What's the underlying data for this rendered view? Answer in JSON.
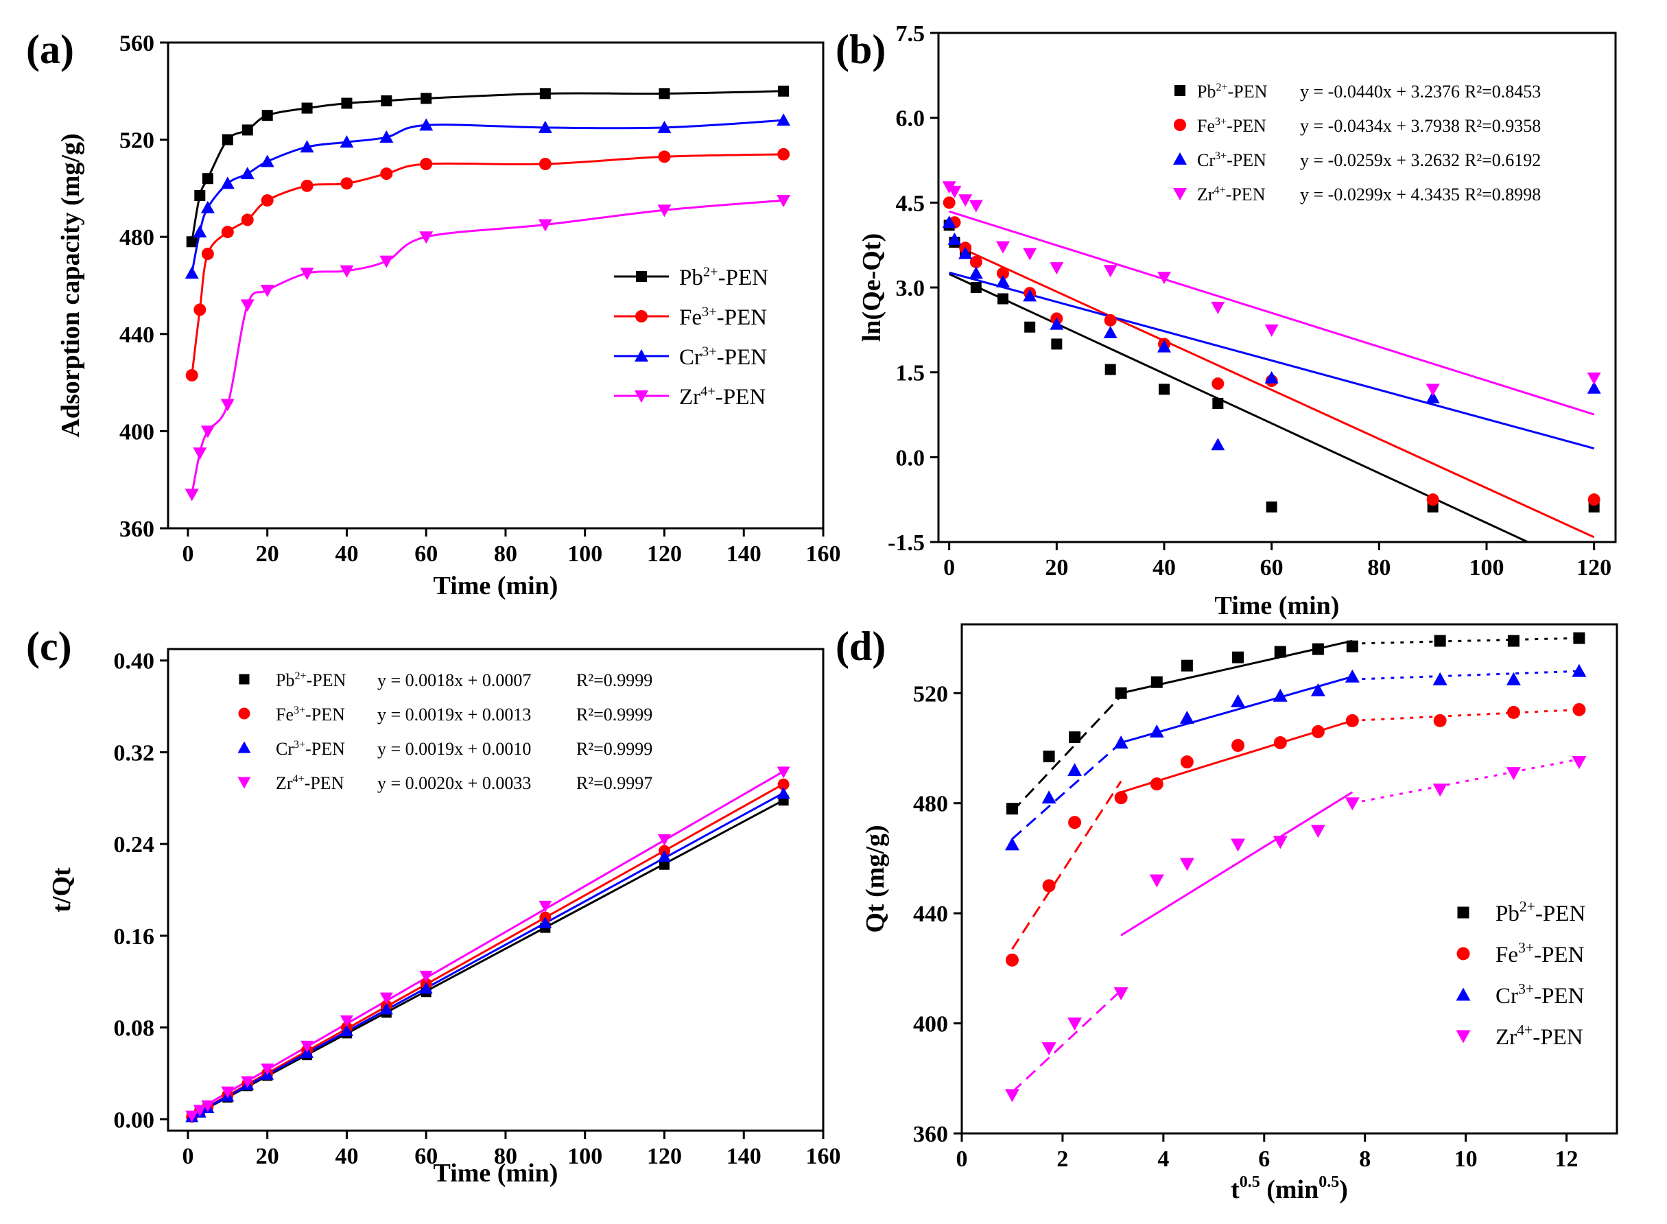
{
  "colors": {
    "Pb": "#000000",
    "Fe": "#ff0000",
    "Cr": "#0000ff",
    "Zr": "#ff00ff",
    "axis": "#000000"
  },
  "chart_data": [
    {
      "panel": "a",
      "label": "(a)",
      "type": "line",
      "xlabel": "Time (min)",
      "ylabel": "Adsorption capacity (mg/g)",
      "xlim": [
        -5,
        160
      ],
      "ylim": [
        360,
        560
      ],
      "xticks": [
        0,
        20,
        40,
        60,
        80,
        100,
        120,
        140,
        160
      ],
      "yticks": [
        360,
        400,
        440,
        480,
        520,
        560
      ],
      "legend_position": "right-middle",
      "series": [
        {
          "name": "Pb²⁺-PEN",
          "ion": "Pb",
          "charge": "2+",
          "marker": "square",
          "x": [
            1,
            3,
            5,
            10,
            15,
            20,
            30,
            40,
            50,
            60,
            90,
            120,
            150
          ],
          "y": [
            478,
            497,
            504,
            520,
            524,
            530,
            533,
            535,
            536,
            537,
            539,
            539,
            540
          ]
        },
        {
          "name": "Fe³⁺-PEN",
          "ion": "Fe",
          "charge": "3+",
          "marker": "circle",
          "x": [
            1,
            3,
            5,
            10,
            15,
            20,
            30,
            40,
            50,
            60,
            90,
            120,
            150
          ],
          "y": [
            423,
            450,
            473,
            482,
            487,
            495,
            501,
            502,
            506,
            510,
            510,
            513,
            514
          ]
        },
        {
          "name": "Cr³⁺-PEN",
          "ion": "Cr",
          "charge": "3+",
          "marker": "triangle-up",
          "x": [
            1,
            3,
            5,
            10,
            15,
            20,
            30,
            40,
            50,
            60,
            90,
            120,
            150
          ],
          "y": [
            465,
            482,
            492,
            502,
            506,
            511,
            517,
            519,
            521,
            526,
            525,
            525,
            528
          ]
        },
        {
          "name": "Zr⁴⁺-PEN",
          "ion": "Zr",
          "charge": "4+",
          "marker": "triangle-down",
          "x": [
            1,
            3,
            5,
            10,
            15,
            20,
            30,
            40,
            50,
            60,
            90,
            120,
            150
          ],
          "y": [
            374,
            391,
            400,
            411,
            452,
            458,
            465,
            466,
            470,
            480,
            485,
            491,
            495
          ]
        }
      ]
    },
    {
      "panel": "b",
      "label": "(b)",
      "type": "scatter",
      "xlabel": "Time (min)",
      "ylabel": "ln(Qe-Qt)",
      "xlim": [
        -2,
        124
      ],
      "ylim": [
        -1.5,
        7.5
      ],
      "xticks": [
        0,
        20,
        40,
        60,
        80,
        100,
        120
      ],
      "yticks": [
        -1.5,
        0.0,
        1.5,
        3.0,
        4.5,
        6.0,
        7.5
      ],
      "ytick_labels": [
        "-1.5",
        "0.0",
        "1.5",
        "3.0",
        "4.5",
        "6.0",
        "7.5"
      ],
      "legend_position": "top-right",
      "series": [
        {
          "name": "Pb²⁺-PEN",
          "ion": "Pb",
          "charge": "2+",
          "marker": "square",
          "equation": "y = -0.0440x + 3.2376",
          "r2": "R²=0.8453",
          "slope": -0.044,
          "intercept": 3.2376,
          "x": [
            0,
            1,
            3,
            5,
            10,
            15,
            20,
            30,
            40,
            50,
            60,
            90,
            120
          ],
          "y": [
            4.1,
            3.8,
            3.6,
            3.0,
            2.8,
            2.3,
            2.0,
            1.55,
            1.2,
            0.95,
            -0.88,
            -0.88,
            -0.88
          ]
        },
        {
          "name": "Fe³⁺-PEN",
          "ion": "Fe",
          "charge": "3+",
          "marker": "circle",
          "equation": "y = -0.0434x + 3.7938",
          "r2": "R²=0.9358",
          "slope": -0.0434,
          "intercept": 3.7938,
          "x": [
            0,
            1,
            3,
            5,
            10,
            15,
            20,
            30,
            40,
            50,
            60,
            90,
            120
          ],
          "y": [
            4.5,
            4.15,
            3.7,
            3.45,
            3.25,
            2.9,
            2.45,
            2.42,
            2.0,
            1.3,
            1.35,
            -0.75,
            -0.75
          ]
        },
        {
          "name": "Cr³⁺-PEN",
          "ion": "Cr",
          "charge": "3+",
          "marker": "triangle-up",
          "equation": "y = -0.0259x + 3.2632",
          "r2": "R²=0.6192",
          "slope": -0.0259,
          "intercept": 3.2632,
          "x": [
            0,
            1,
            3,
            5,
            10,
            15,
            20,
            30,
            40,
            50,
            60,
            90,
            120
          ],
          "y": [
            4.15,
            3.85,
            3.6,
            3.25,
            3.1,
            2.85,
            2.35,
            2.2,
            1.95,
            0.22,
            1.4,
            1.05,
            1.22
          ]
        },
        {
          "name": "Zr⁴⁺-PEN",
          "ion": "Zr",
          "charge": "4+",
          "marker": "triangle-down",
          "equation": "y = -0.0299x + 4.3435",
          "r2": "R²=0.8998",
          "slope": -0.0299,
          "intercept": 4.3435,
          "x": [
            0,
            1,
            3,
            5,
            10,
            15,
            20,
            30,
            40,
            50,
            60,
            90,
            120
          ],
          "y": [
            4.78,
            4.7,
            4.55,
            4.45,
            3.72,
            3.6,
            3.35,
            3.3,
            3.18,
            2.65,
            2.25,
            1.2,
            1.4
          ]
        }
      ]
    },
    {
      "panel": "c",
      "label": "(c)",
      "type": "scatter",
      "xlabel": "Time (min)",
      "ylabel": "t/Qt",
      "xlim": [
        -5,
        160
      ],
      "ylim": [
        -0.01,
        0.41
      ],
      "xticks": [
        0,
        20,
        40,
        60,
        80,
        100,
        120,
        140,
        160
      ],
      "yticks": [
        0.0,
        0.08,
        0.16,
        0.24,
        0.32,
        0.4
      ],
      "ytick_labels": [
        "0.00",
        "0.08",
        "0.16",
        "0.24",
        "0.32",
        "0.40"
      ],
      "legend_position": "top-left",
      "series": [
        {
          "name": "Pb²⁺-PEN",
          "ion": "Pb",
          "charge": "2+",
          "marker": "square",
          "equation": "y = 0.0018x + 0.0007",
          "r2": "R²=0.9999",
          "slope": 0.00185,
          "intercept": 0.0007,
          "x": [
            1,
            3,
            5,
            10,
            15,
            20,
            30,
            40,
            50,
            60,
            90,
            120,
            150
          ],
          "y": [
            0.002,
            0.006,
            0.01,
            0.019,
            0.029,
            0.038,
            0.056,
            0.075,
            0.093,
            0.111,
            0.167,
            0.222,
            0.278
          ]
        },
        {
          "name": "Fe³⁺-PEN",
          "ion": "Fe",
          "charge": "3+",
          "marker": "circle",
          "equation": "y = 0.0019x + 0.0013",
          "r2": "R²=0.9999",
          "slope": 0.00194,
          "intercept": 0.0013,
          "x": [
            1,
            3,
            5,
            10,
            15,
            20,
            30,
            40,
            50,
            60,
            90,
            120,
            150
          ],
          "y": [
            0.002,
            0.007,
            0.011,
            0.021,
            0.031,
            0.04,
            0.06,
            0.08,
            0.099,
            0.118,
            0.176,
            0.234,
            0.292
          ]
        },
        {
          "name": "Cr³⁺-PEN",
          "ion": "Cr",
          "charge": "3+",
          "marker": "triangle-up",
          "equation": "y = 0.0019x + 0.0010",
          "r2": "R²=0.9999",
          "slope": 0.00189,
          "intercept": 0.001,
          "x": [
            1,
            3,
            5,
            10,
            15,
            20,
            30,
            40,
            50,
            60,
            90,
            120,
            150
          ],
          "y": [
            0.002,
            0.006,
            0.01,
            0.02,
            0.03,
            0.039,
            0.058,
            0.077,
            0.096,
            0.114,
            0.171,
            0.229,
            0.284
          ]
        },
        {
          "name": "Zr⁴⁺-PEN",
          "ion": "Zr",
          "charge": "4+",
          "marker": "triangle-down",
          "equation": "y = 0.0020x + 0.0033",
          "r2": "R²=0.9997",
          "slope": 0.002,
          "intercept": 0.0033,
          "x": [
            1,
            3,
            5,
            10,
            15,
            20,
            30,
            40,
            50,
            60,
            90,
            120,
            150
          ],
          "y": [
            0.003,
            0.008,
            0.012,
            0.024,
            0.033,
            0.044,
            0.064,
            0.086,
            0.106,
            0.125,
            0.186,
            0.244,
            0.303
          ]
        }
      ]
    },
    {
      "panel": "d",
      "label": "(d)",
      "type": "scatter",
      "xlabel": "t^0.5 (min^0.5)",
      "xlabel_base": "t",
      "xlabel_sup1": "0.5",
      "xlabel_mid": " (min",
      "xlabel_sup2": "0.5",
      "xlabel_end": ")",
      "ylabel": "Qt (mg/g)",
      "xlim": [
        0,
        13
      ],
      "ylim": [
        360,
        545
      ],
      "xticks": [
        0,
        2,
        4,
        6,
        8,
        10,
        12
      ],
      "yticks": [
        360,
        400,
        440,
        480,
        520
      ],
      "legend_position": "bottom-right",
      "series": [
        {
          "name": "Pb²⁺-PEN",
          "ion": "Pb",
          "charge": "2+",
          "marker": "square",
          "x": [
            1.0,
            1.73,
            2.24,
            3.16,
            3.87,
            4.47,
            5.48,
            6.32,
            7.07,
            7.75,
            9.49,
            10.95,
            12.25
          ],
          "y": [
            478,
            497,
            504,
            520,
            524,
            530,
            533,
            535,
            536,
            537,
            539,
            539,
            540
          ],
          "fits": [
            {
              "style": "dashed",
              "x": [
                1.0,
                3.16
              ],
              "y": [
                477,
                519
              ]
            },
            {
              "style": "solid",
              "x": [
                3.16,
                7.75
              ],
              "y": [
                520,
                539
              ]
            },
            {
              "style": "dotted",
              "x": [
                7.75,
                12.25
              ],
              "y": [
                538,
                540
              ]
            }
          ]
        },
        {
          "name": "Fe³⁺-PEN",
          "ion": "Fe",
          "charge": "3+",
          "marker": "circle",
          "x": [
            1.0,
            1.73,
            2.24,
            3.16,
            3.87,
            4.47,
            5.48,
            6.32,
            7.07,
            7.75,
            9.49,
            10.95,
            12.25
          ],
          "y": [
            423,
            450,
            473,
            482,
            487,
            495,
            501,
            502,
            506,
            510,
            510,
            513,
            514
          ],
          "fits": [
            {
              "style": "dashed",
              "x": [
                1.0,
                3.16
              ],
              "y": [
                427,
                488
              ]
            },
            {
              "style": "solid",
              "x": [
                3.16,
                7.75
              ],
              "y": [
                484,
                510
              ]
            },
            {
              "style": "dotted",
              "x": [
                7.75,
                12.25
              ],
              "y": [
                510,
                514
              ]
            }
          ]
        },
        {
          "name": "Cr³⁺-PEN",
          "ion": "Cr",
          "charge": "3+",
          "marker": "triangle-up",
          "x": [
            1.0,
            1.73,
            2.24,
            3.16,
            3.87,
            4.47,
            5.48,
            6.32,
            7.07,
            7.75,
            9.49,
            10.95,
            12.25
          ],
          "y": [
            465,
            482,
            492,
            502,
            506,
            511,
            517,
            519,
            521,
            526,
            525,
            525,
            528
          ],
          "fits": [
            {
              "style": "dashed",
              "x": [
                1.0,
                3.16
              ],
              "y": [
                467,
                502
              ]
            },
            {
              "style": "solid",
              "x": [
                3.16,
                7.75
              ],
              "y": [
                502,
                526
              ]
            },
            {
              "style": "dotted",
              "x": [
                7.75,
                12.25
              ],
              "y": [
                525,
                528
              ]
            }
          ]
        },
        {
          "name": "Zr⁴⁺-PEN",
          "ion": "Zr",
          "charge": "4+",
          "marker": "triangle-down",
          "x": [
            1.0,
            1.73,
            2.24,
            3.16,
            3.87,
            4.47,
            5.48,
            6.32,
            7.07,
            7.75,
            9.49,
            10.95,
            12.25
          ],
          "y": [
            374,
            391,
            400,
            411,
            452,
            458,
            465,
            466,
            470,
            480,
            485,
            491,
            495
          ],
          "fits": [
            {
              "style": "dashed",
              "x": [
                1.0,
                3.16
              ],
              "y": [
                375,
                412
              ]
            },
            {
              "style": "solid",
              "x": [
                3.16,
                7.75
              ],
              "y": [
                432,
                484
              ]
            },
            {
              "style": "dotted",
              "x": [
                7.75,
                12.25
              ],
              "y": [
                480,
                496
              ]
            }
          ]
        }
      ]
    }
  ]
}
